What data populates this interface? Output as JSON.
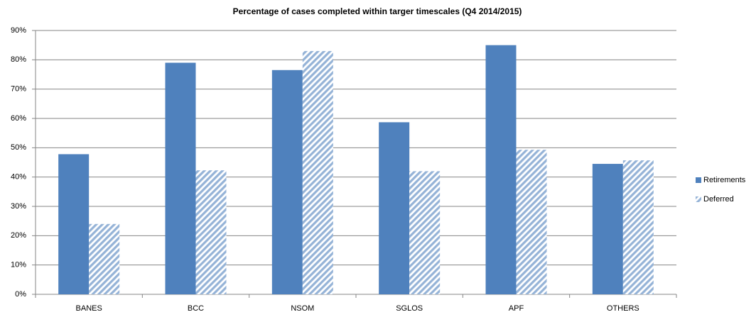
{
  "chart_data": {
    "type": "bar",
    "title": "Percentage of cases completed within targer timescales (Q4 2014/2015)",
    "categories": [
      "BANES",
      "BCC",
      "NSOM",
      "SGLOS",
      "APF",
      "OTHERS"
    ],
    "series": [
      {
        "name": "Retirements",
        "color": "#4f81bd",
        "values": [
          47.8,
          79,
          76.5,
          58.7,
          85,
          44.5
        ]
      },
      {
        "name": "Deferred",
        "color": "#95b3d7",
        "pattern": "diagonal",
        "values": [
          24,
          42.3,
          83,
          42,
          49.3,
          45.7
        ]
      }
    ],
    "ylim": [
      0,
      90
    ],
    "yticks": [
      {
        "value": 0,
        "label": "0%"
      },
      {
        "value": 10,
        "label": "10%"
      },
      {
        "value": 20,
        "label": "20%"
      },
      {
        "value": 30,
        "label": "30%"
      },
      {
        "value": 40,
        "label": "40%"
      },
      {
        "value": 50,
        "label": "50%"
      },
      {
        "value": 60,
        "label": "60%"
      },
      {
        "value": 70,
        "label": "70%"
      },
      {
        "value": 80,
        "label": "80%"
      },
      {
        "value": 90,
        "label": "90%"
      }
    ],
    "grid": true,
    "legend": "right"
  }
}
